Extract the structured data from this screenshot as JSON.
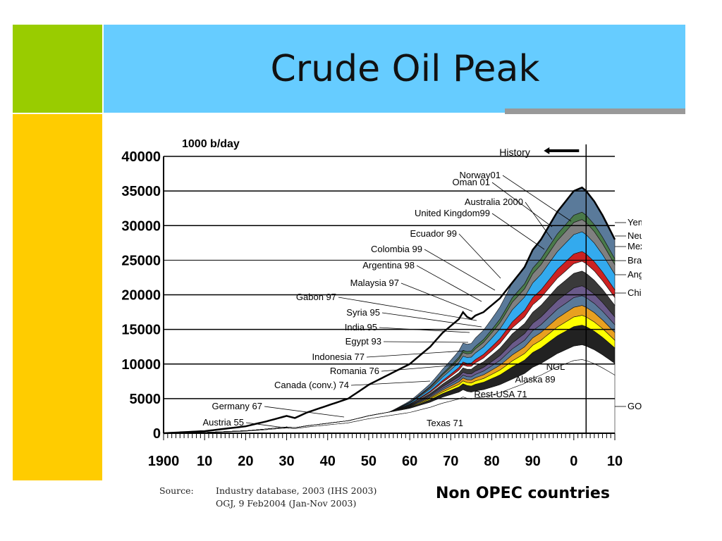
{
  "slide": {
    "title": "Crude Oil Peak",
    "colors": {
      "left_top": "#99cc00",
      "left_bottom": "#ffcc00",
      "title_bar": "#66ccff",
      "underline": "#999999"
    }
  },
  "source": {
    "label": "Source:",
    "line1": "Industry database, 2003 (IHS 2003)",
    "line2": "OGJ, 9 Feb2004 (Jan-Nov 2003)"
  },
  "footer": {
    "note": "Non OPEC countries"
  },
  "chart_data": {
    "type": "area",
    "title": "",
    "ylabel": "1000 b/day",
    "xlabel": "",
    "xlim": [
      1900,
      2010
    ],
    "ylim": [
      0,
      40000
    ],
    "x_tick_labels": [
      "1900",
      "10",
      "20",
      "30",
      "40",
      "50",
      "60",
      "70",
      "80",
      "90",
      "0",
      "10"
    ],
    "y_tick_labels": [
      "0",
      "5000",
      "10000",
      "15000",
      "20000",
      "25000",
      "30000",
      "35000",
      "40000"
    ],
    "history_marker": {
      "label": "History",
      "year": 2003
    },
    "grid": "horizontal",
    "total_production": {
      "x": [
        1900,
        1910,
        1920,
        1925,
        1930,
        1932,
        1935,
        1940,
        1945,
        1950,
        1955,
        1960,
        1965,
        1968,
        1970,
        1972,
        1973,
        1974,
        1975,
        1976,
        1978,
        1980,
        1982,
        1984,
        1986,
        1988,
        1990,
        1992,
        1994,
        1996,
        1998,
        2000,
        2002,
        2003,
        2005,
        2007,
        2010
      ],
      "y": [
        0,
        300,
        1000,
        1700,
        2500,
        2200,
        3000,
        4000,
        5000,
        7000,
        8500,
        10000,
        12500,
        14500,
        15500,
        16500,
        17500,
        16800,
        16500,
        17000,
        17500,
        18500,
        19500,
        21000,
        22500,
        24000,
        26500,
        28000,
        30000,
        32000,
        33500,
        35000,
        35500,
        35000,
        33500,
        31500,
        28000
      ]
    },
    "series_labels_left": [
      "Oman 01",
      "Norway01",
      "Australia 2000",
      "United Kingdom99",
      "Ecuador 99",
      "Colombia 99",
      "Argentina 98",
      "Malaysia 97",
      "Gabon 97",
      "Syria 95",
      "India 95",
      "Egypt 93",
      "Indonesia 77",
      "Romania 76",
      "Canada (conv.) 74",
      "Germany 67",
      "Austria 55"
    ],
    "series_labels_inner": [
      "NGL",
      "Alaska 89",
      "Rest-USA 71",
      "Texas 71"
    ],
    "series_labels_right": [
      "Yemen",
      "Neutral Zone",
      "Mexico",
      "Brazil",
      "Angola",
      "China",
      "GOM"
    ]
  }
}
